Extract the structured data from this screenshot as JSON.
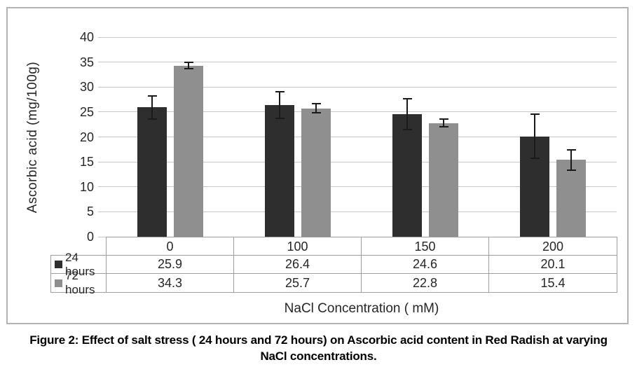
{
  "figure_caption": {
    "line1": "Figure 2: Effect of salt stress ( 24 hours and 72 hours) on Ascorbic acid content in Red Radish at varying",
    "line2": "NaCl concentrations."
  },
  "chart_data": {
    "type": "bar",
    "title": "",
    "xlabel": "NaCl Concentration ( mM)",
    "ylabel": "Ascorbic acid (mg/100g)",
    "ylim": [
      0,
      40
    ],
    "ytick_step": 5,
    "grid": true,
    "legend_position": "table-left",
    "data_table_shown": true,
    "categories": [
      "0",
      "100",
      "150",
      "200"
    ],
    "series": [
      {
        "name": "24 hours",
        "color": "#2e2e2e",
        "values": [
          25.9,
          26.4,
          24.6,
          20.1
        ],
        "error_bars": [
          2.3,
          2.7,
          3.1,
          4.4
        ]
      },
      {
        "name": "72 hours",
        "color": "#8f8f8f",
        "values": [
          34.3,
          25.7,
          22.8,
          15.4
        ],
        "error_bars": [
          0.6,
          0.9,
          0.8,
          2.0
        ]
      }
    ],
    "colors": {
      "gridline": "#c6c6c6",
      "table_border": "#9e9e9e",
      "frame_border": "#b3b3b3",
      "text": "#262626"
    }
  }
}
